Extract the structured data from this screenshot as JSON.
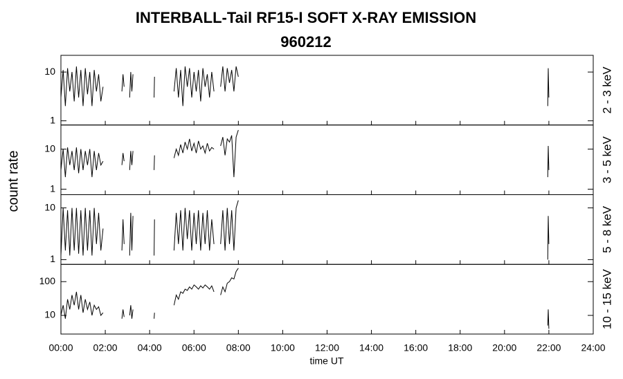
{
  "chart_data": {
    "type": "line",
    "title": "INTERBALL-Tail RF15-I SOFT X-RAY EMISSION",
    "subtitle": "960212",
    "xlabel": "time UT",
    "ylabel": "count rate",
    "log_scale": true,
    "color": "#000000",
    "xlim": [
      0,
      24
    ],
    "xticks": [
      {
        "value": 0,
        "label": "00:00"
      },
      {
        "value": 2,
        "label": "02:00"
      },
      {
        "value": 4,
        "label": "04:00"
      },
      {
        "value": 6,
        "label": "06:00"
      },
      {
        "value": 8,
        "label": "08:00"
      },
      {
        "value": 10,
        "label": "10:00"
      },
      {
        "value": 12,
        "label": "12:00"
      },
      {
        "value": 14,
        "label": "14:00"
      },
      {
        "value": 16,
        "label": "16:00"
      },
      {
        "value": 18,
        "label": "18:00"
      },
      {
        "value": 20,
        "label": "20:00"
      },
      {
        "value": 22,
        "label": "22:00"
      },
      {
        "value": 24,
        "label": "24:00"
      }
    ],
    "x": [
      0,
      0.1,
      0.2,
      0.3,
      0.4,
      0.5,
      0.6,
      0.7,
      0.8,
      0.9,
      1.0,
      1.1,
      1.2,
      1.3,
      1.4,
      1.5,
      1.6,
      1.7,
      1.8,
      1.9,
      2.3,
      2.75,
      2.8,
      2.85,
      3.0,
      3.1,
      3.15,
      3.2,
      3.25,
      3.7,
      4.2,
      4.22,
      4.6,
      5.1,
      5.2,
      5.3,
      5.4,
      5.5,
      5.6,
      5.7,
      5.8,
      5.9,
      6.0,
      6.1,
      6.2,
      6.3,
      6.4,
      6.5,
      6.6,
      6.7,
      6.8,
      6.9,
      7.05,
      7.2,
      7.3,
      7.4,
      7.5,
      7.6,
      7.7,
      7.8,
      7.9,
      8.0,
      15,
      21.95,
      21.97,
      22.0
    ],
    "series": [
      {
        "name": "2 - 3 keV",
        "ylim": [
          0.82,
          22
        ],
        "yticks": [
          1,
          10
        ],
        "values": [
          3,
          11,
          2,
          12,
          4,
          10,
          2.5,
          13,
          3,
          11,
          2,
          12,
          3.5,
          10,
          2,
          11,
          4,
          9,
          2.5,
          5,
          null,
          4,
          9,
          5,
          null,
          3,
          10,
          4,
          9,
          null,
          3,
          8,
          null,
          4,
          12,
          3,
          11,
          2,
          13,
          5,
          12,
          3,
          10,
          4,
          11,
          2.5,
          12,
          5,
          9,
          3,
          10,
          4,
          null,
          5,
          13,
          4,
          12,
          6,
          11,
          4,
          13,
          8,
          null,
          2,
          12,
          3
        ]
      },
      {
        "name": "3 - 5 keV",
        "ylim": [
          0.73,
          40
        ],
        "yticks": [
          1,
          10
        ],
        "values": [
          3,
          10,
          2,
          11,
          4,
          9,
          3,
          11,
          2.5,
          10,
          3,
          9,
          4,
          10,
          2,
          9,
          3,
          8,
          4,
          5,
          null,
          4,
          8,
          5,
          null,
          3,
          9,
          4,
          9,
          null,
          3,
          7,
          null,
          6,
          10,
          7,
          13,
          8,
          15,
          10,
          18,
          9,
          14,
          8,
          16,
          10,
          12,
          8,
          14,
          9,
          11,
          10,
          null,
          12,
          20,
          7,
          18,
          15,
          22,
          2,
          20,
          30,
          null,
          2,
          12,
          3
        ]
      },
      {
        "name": "5 - 8 keV",
        "ylim": [
          0.81,
          18
        ],
        "yticks": [
          1,
          10
        ],
        "values": [
          1.2,
          10,
          1.5,
          9,
          1.2,
          10,
          1.5,
          10,
          1.3,
          9,
          1.2,
          10,
          1.5,
          9,
          1.2,
          10,
          2,
          8,
          1.5,
          4,
          null,
          1.5,
          6,
          2,
          null,
          1.2,
          8,
          1.5,
          7,
          null,
          1.2,
          6,
          null,
          1.5,
          8,
          2,
          9,
          1.5,
          10,
          2.5,
          9,
          1.5,
          8,
          2,
          9,
          1.5,
          8,
          2,
          9,
          1.5,
          6,
          2,
          null,
          2,
          9,
          1.5,
          10,
          2,
          9,
          1.5,
          10,
          14,
          null,
          1,
          7,
          2
        ]
      },
      {
        "name": "10 - 15 keV",
        "ylim": [
          2.8,
          325
        ],
        "yticks": [
          10,
          100
        ],
        "values": [
          10,
          20,
          8,
          30,
          15,
          40,
          20,
          50,
          15,
          40,
          12,
          30,
          15,
          25,
          10,
          20,
          15,
          18,
          10,
          12,
          null,
          8,
          15,
          9,
          null,
          10,
          20,
          8,
          15,
          null,
          8,
          12,
          null,
          20,
          40,
          30,
          50,
          45,
          60,
          55,
          70,
          60,
          80,
          70,
          60,
          75,
          65,
          80,
          70,
          60,
          75,
          50,
          null,
          40,
          70,
          50,
          90,
          100,
          130,
          120,
          200,
          250,
          null,
          5,
          15,
          4
        ]
      }
    ]
  }
}
